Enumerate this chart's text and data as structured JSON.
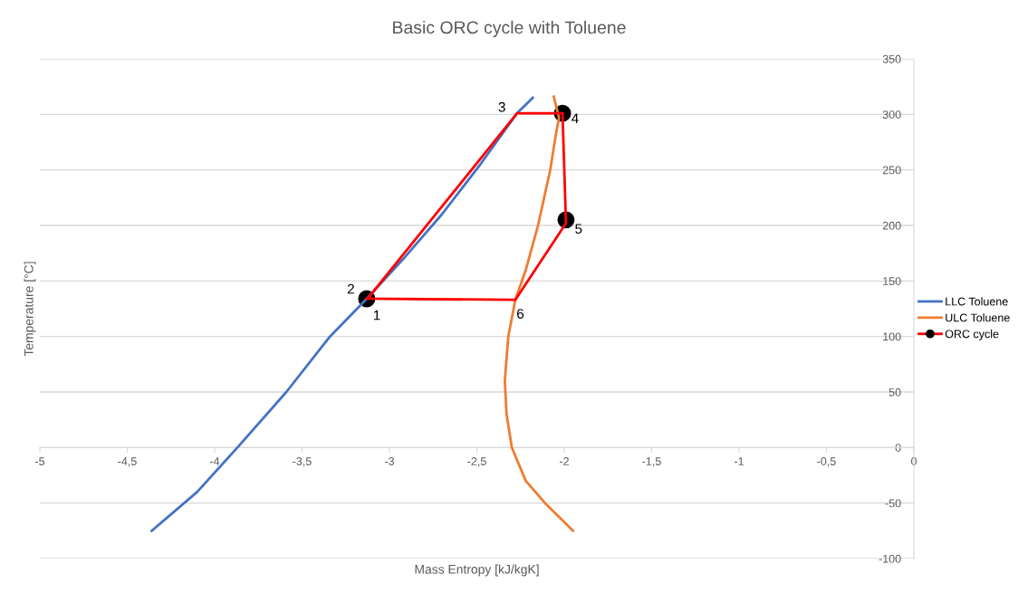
{
  "chart_data": {
    "type": "line",
    "title": "Basic ORC cycle with Toluene",
    "xlabel": "Mass Entropy [kJ/kgK]",
    "ylabel": "Temperature [°C]",
    "xlim": [
      -5,
      0
    ],
    "ylim": [
      -100,
      350
    ],
    "xticks": [
      -5,
      {
        "value": -4.5,
        "label": "-4,5"
      },
      -4,
      {
        "value": -3.5,
        "label": "-3,5"
      },
      -3,
      {
        "value": -2.5,
        "label": "-2,5"
      },
      -2,
      {
        "value": -1.5,
        "label": "-1,5"
      },
      -1,
      {
        "value": -0.5,
        "label": "-0,5"
      },
      0
    ],
    "yticks": [
      -100,
      -50,
      0,
      50,
      100,
      150,
      200,
      250,
      300,
      350
    ],
    "grid": "y",
    "legend": "right",
    "series": [
      {
        "name": "LLC Toluene",
        "color": "#4472c4",
        "x": [
          -4.36,
          -4.1,
          -3.87,
          -3.59,
          -3.34,
          -3.13,
          -2.92,
          -2.7,
          -2.48,
          -2.27,
          -2.18
        ],
        "values": [
          -75,
          -40,
          0,
          50,
          100,
          134,
          170,
          210,
          255,
          301,
          315
        ]
      },
      {
        "name": "ULC Toluene",
        "color": "#ed7d31",
        "x": [
          -2.06,
          -2.03,
          -2.05,
          -2.08,
          -2.15,
          -2.22,
          -2.28,
          -2.32,
          -2.34,
          -2.33,
          -2.3,
          -2.22,
          -2.11,
          -1.95
        ],
        "values": [
          316,
          297,
          280,
          250,
          200,
          160,
          133,
          100,
          60,
          30,
          0,
          -30,
          -50,
          -75
        ]
      },
      {
        "name": "ORC cycle",
        "color": "#ff0000",
        "x": [
          -3.12,
          -2.27,
          -2.01,
          -1.99,
          -2.28,
          -3.13
        ],
        "values": [
          135,
          301,
          301,
          202,
          133,
          134
        ]
      },
      {
        "type": "scatter",
        "color": "#000000",
        "marker": "circle",
        "x": [
          -3.13,
          -2.01,
          -1.99
        ],
        "values": [
          134,
          301,
          205
        ]
      }
    ],
    "annotations": [
      {
        "text": "1",
        "x": -3.13,
        "y": 134
      },
      {
        "text": "2",
        "x": -3.12,
        "y": 135
      },
      {
        "text": "3",
        "x": -2.27,
        "y": 301
      },
      {
        "text": "4",
        "x": -2.01,
        "y": 301
      },
      {
        "text": "5",
        "x": -1.99,
        "y": 205
      },
      {
        "text": "6",
        "x": -2.28,
        "y": 133
      }
    ]
  }
}
